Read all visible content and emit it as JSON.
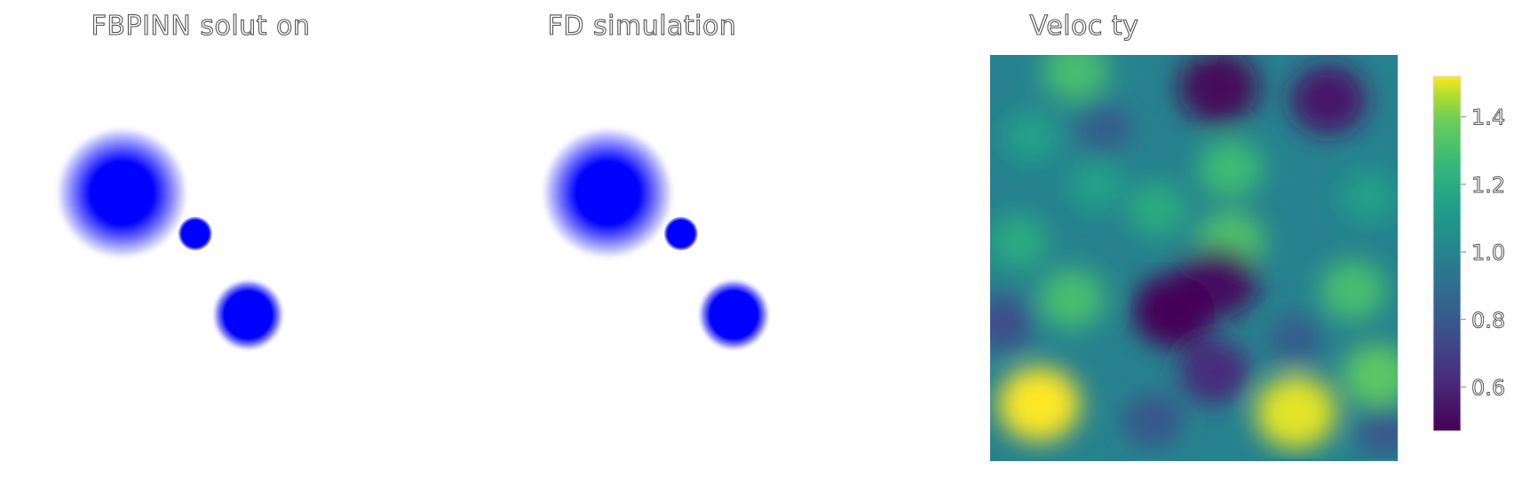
{
  "panels": {
    "fbpinn_title": "FBPINN solut on",
    "fd_title": "FD simulation",
    "velocity_title": "Veloc ty"
  },
  "colors": {
    "wavefield": "#0000ff",
    "background": "#ffffff"
  },
  "chart_data": [
    {
      "type": "heatmap",
      "title": "FBPINN solut on",
      "description_units": "wavefield amplitude shown as blue intensity",
      "sources": [
        {
          "x": 0.3,
          "y": 0.66,
          "peak": 1.0,
          "spread": "wide"
        },
        {
          "x": 0.48,
          "y": 0.56,
          "peak": 1.0,
          "spread": "narrow"
        },
        {
          "x": 0.61,
          "y": 0.36,
          "peak": 1.0,
          "spread": "medium"
        }
      ]
    },
    {
      "type": "heatmap",
      "title": "FD simulation",
      "description_units": "wavefield amplitude shown as blue intensity",
      "sources": [
        {
          "x": 0.3,
          "y": 0.66,
          "peak": 1.0,
          "spread": "wide"
        },
        {
          "x": 0.48,
          "y": 0.56,
          "peak": 1.0,
          "spread": "narrow"
        },
        {
          "x": 0.61,
          "y": 0.36,
          "peak": 1.0,
          "spread": "medium"
        }
      ]
    },
    {
      "type": "heatmap",
      "title": "Veloc ty",
      "colormap": "viridis",
      "vmin": 0.47,
      "vmax": 1.52,
      "colorbar_ticks": [
        0.6,
        0.8,
        1.0,
        1.2,
        1.4
      ],
      "colorbar_tick_labels": [
        "0.6",
        "0.8",
        "1.0",
        "1.2",
        "1.4"
      ],
      "blobs": [
        {
          "x": 0.12,
          "y": 0.14,
          "value": 1.52
        },
        {
          "x": 0.75,
          "y": 0.12,
          "value": 1.5
        },
        {
          "x": 0.95,
          "y": 0.21,
          "value": 1.35
        },
        {
          "x": 0.59,
          "y": 0.54,
          "value": 1.32
        },
        {
          "x": 0.59,
          "y": 0.72,
          "value": 1.28
        },
        {
          "x": 0.2,
          "y": 0.4,
          "value": 1.3
        },
        {
          "x": 0.89,
          "y": 0.42,
          "value": 1.3
        },
        {
          "x": 0.21,
          "y": 0.96,
          "value": 1.3
        },
        {
          "x": 0.41,
          "y": 0.62,
          "value": 1.2
        },
        {
          "x": 0.07,
          "y": 0.54,
          "value": 1.2
        },
        {
          "x": 0.26,
          "y": 0.68,
          "value": 1.15
        },
        {
          "x": 0.1,
          "y": 0.8,
          "value": 1.15
        },
        {
          "x": 0.55,
          "y": 0.95,
          "value": 1.15
        },
        {
          "x": 0.93,
          "y": 0.65,
          "value": 1.15
        },
        {
          "x": 0.56,
          "y": 0.44,
          "value": 0.52
        },
        {
          "x": 0.45,
          "y": 0.37,
          "value": 0.48
        },
        {
          "x": 0.55,
          "y": 0.22,
          "value": 0.62
        },
        {
          "x": 0.56,
          "y": 0.92,
          "value": 0.49
        },
        {
          "x": 0.83,
          "y": 0.89,
          "value": 0.55
        },
        {
          "x": 0.28,
          "y": 0.82,
          "value": 0.82
        },
        {
          "x": 0.03,
          "y": 0.34,
          "value": 0.75
        },
        {
          "x": 0.97,
          "y": 0.07,
          "value": 0.8
        },
        {
          "x": 0.4,
          "y": 0.1,
          "value": 0.78
        },
        {
          "x": 0.75,
          "y": 0.3,
          "value": 0.82
        }
      ]
    }
  ]
}
